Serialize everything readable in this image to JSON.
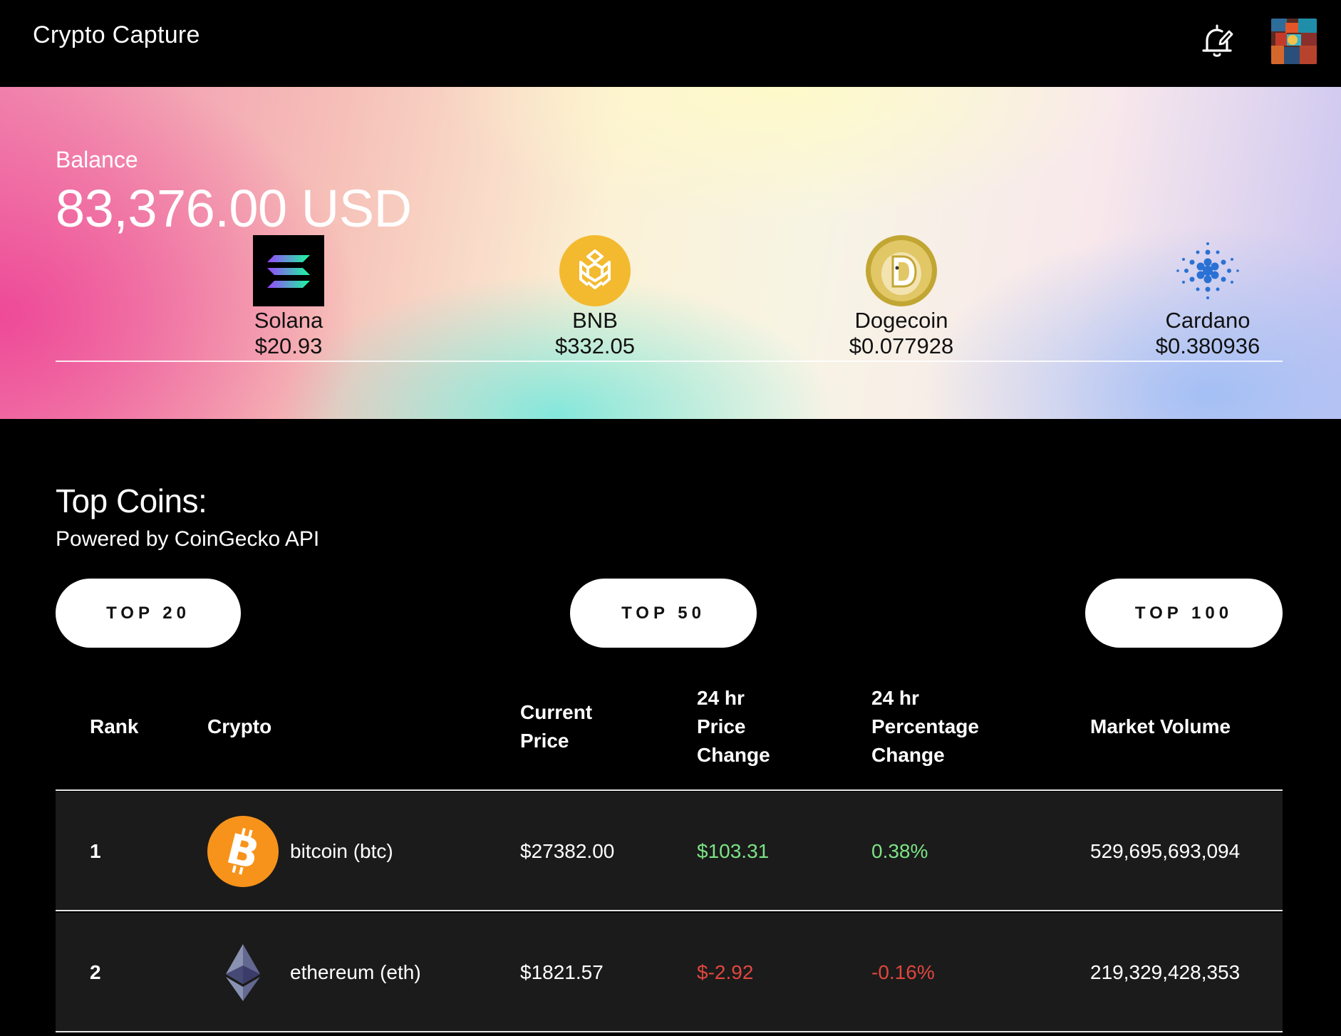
{
  "header": {
    "app_title": "Crypto Capture",
    "notification_icon": "bell-edit-icon",
    "avatar_icon": "avatar"
  },
  "hero": {
    "balance_label": "Balance",
    "balance_value": "83,376.00 USD",
    "coins": [
      {
        "name": "Solana",
        "price": "$20.93",
        "icon": "solana-logo"
      },
      {
        "name": "BNB",
        "price": "$332.05",
        "icon": "bnb-logo"
      },
      {
        "name": "Dogecoin",
        "price": "$0.077928",
        "icon": "dogecoin-logo"
      },
      {
        "name": "Cardano",
        "price": "$0.380936",
        "icon": "cardano-logo"
      }
    ]
  },
  "top_coins": {
    "title": "Top Coins:",
    "subtitle": "Powered by CoinGecko API",
    "filters": [
      "TOP 20",
      "TOP 50",
      "TOP 100"
    ],
    "columns": {
      "rank": "Rank",
      "crypto": "Crypto",
      "price_l1": "Current",
      "price_l2": "Price",
      "change_l1": "24 hr",
      "change_l2": "Price",
      "change_l3": "Change",
      "pct_l1": "24 hr",
      "pct_l2": "Percentage",
      "pct_l3": "Change",
      "volume": "Market Volume"
    },
    "rows": [
      {
        "rank": "1",
        "name": "bitcoin (btc)",
        "price": "$27382.00",
        "change": "$103.31",
        "pct": "0.38%",
        "volume": "529,695,693,094",
        "trend": "up",
        "icon": "bitcoin-logo"
      },
      {
        "rank": "2",
        "name": "ethereum (eth)",
        "price": "$1821.57",
        "change": "$-2.92",
        "pct": "-0.16%",
        "volume": "219,329,428,353",
        "trend": "down",
        "icon": "ethereum-logo"
      }
    ]
  },
  "colors": {
    "positive": "#7be384",
    "negative": "#e0463d",
    "row_bg": "#1b1b1b"
  }
}
